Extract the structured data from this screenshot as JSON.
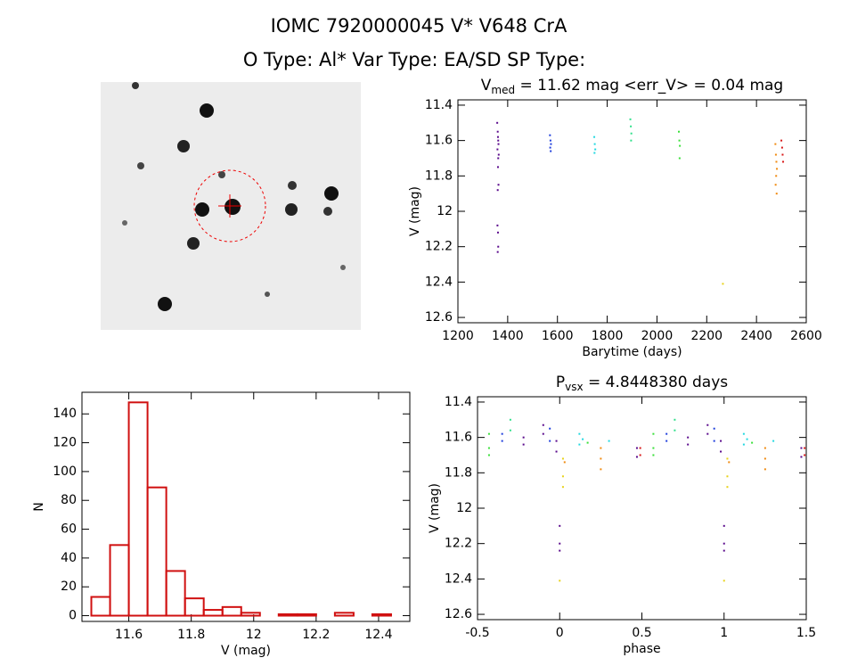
{
  "header": {
    "line1": "IOMC 7920000045    V* V648 CrA",
    "line2": "O Type: Al*  Var Type: EA/SD  SP Type:"
  },
  "chart_data": [
    {
      "type": "scatter",
      "title": "V",
      "title_subscript": "med",
      "title_suffix": " = 11.62 mag <err_V> = 0.04 mag",
      "x_label": "Barytime (days)",
      "y_label": "V (mag)",
      "xlim": [
        1200,
        2600
      ],
      "xticks": [
        1200,
        1400,
        1600,
        1800,
        2000,
        2200,
        2400,
        2600
      ],
      "ylim": [
        12.63,
        11.37
      ],
      "yticks": [
        11.4,
        11.6,
        11.8,
        12.0,
        12.2,
        12.4,
        12.6
      ],
      "series": [
        {
          "color": "#5a0a8c",
          "x": [
            1358,
            1360,
            1361,
            1362,
            1363,
            1359,
            1364,
            1362,
            1361,
            1363,
            1360,
            1359,
            1361,
            1362,
            1360
          ],
          "values": [
            11.5,
            11.55,
            11.58,
            11.6,
            11.62,
            11.65,
            11.68,
            11.7,
            11.75,
            11.85,
            11.88,
            12.08,
            12.12,
            12.2,
            12.23
          ]
        },
        {
          "color": "#1f3fdc",
          "x": [
            1570,
            1572,
            1574,
            1571,
            1573
          ],
          "values": [
            11.57,
            11.6,
            11.62,
            11.64,
            11.66
          ]
        },
        {
          "color": "#22d8e0",
          "x": [
            1748,
            1750,
            1752,
            1749
          ],
          "values": [
            11.58,
            11.62,
            11.65,
            11.67
          ]
        },
        {
          "color": "#2ee08a",
          "x": [
            1893,
            1895,
            1897,
            1896
          ],
          "values": [
            11.48,
            11.52,
            11.56,
            11.6
          ]
        },
        {
          "color": "#3ae03a",
          "x": [
            2088,
            2090,
            2092,
            2091
          ],
          "values": [
            11.55,
            11.6,
            11.63,
            11.7
          ]
        },
        {
          "color": "#e8d21a",
          "x": [
            2265
          ],
          "values": [
            12.41
          ]
        },
        {
          "color": "#f08a10",
          "x": [
            2476,
            2478,
            2480,
            2482,
            2479,
            2477,
            2481
          ],
          "values": [
            11.62,
            11.68,
            11.72,
            11.76,
            11.8,
            11.85,
            11.9
          ]
        },
        {
          "color": "#d81818",
          "x": [
            2500,
            2503,
            2505,
            2507
          ],
          "values": [
            11.6,
            11.64,
            11.68,
            11.72
          ]
        }
      ]
    },
    {
      "type": "histogram",
      "x_label": "V (mag)",
      "y_label": "N",
      "color": "#d01010",
      "bins": [
        11.48,
        11.54,
        11.6,
        11.66,
        11.72,
        11.78,
        11.84,
        11.9,
        11.96,
        12.02,
        12.08,
        12.14,
        12.2,
        12.26,
        12.32,
        12.38,
        12.44
      ],
      "values": [
        13,
        49,
        148,
        89,
        31,
        12,
        4,
        6,
        2,
        0,
        1,
        1,
        0,
        2,
        0,
        1
      ],
      "xlim": [
        11.45,
        12.5
      ],
      "xticks": [
        11.6,
        11.8,
        12.0,
        12.2,
        12.4
      ],
      "ylim": [
        -4,
        155
      ],
      "yticks": [
        0,
        20,
        40,
        60,
        80,
        100,
        120,
        140
      ]
    },
    {
      "type": "scatter",
      "title": "P",
      "title_subscript": "vsx",
      "title_suffix": " = 4.8448380 days",
      "x_label": "phase",
      "y_label": "V (mag)",
      "xlim": [
        -0.5,
        1.5
      ],
      "xticks": [
        -0.5,
        0.0,
        0.5,
        1.0,
        1.5
      ],
      "ylim": [
        12.63,
        11.37
      ],
      "yticks": [
        11.4,
        11.6,
        11.8,
        12.0,
        12.2,
        12.4,
        12.6
      ],
      "series": [
        {
          "color": "#5a0a8c",
          "x": [
            -0.22,
            -0.22,
            -0.1,
            -0.1,
            -0.02,
            -0.02,
            0.0,
            0.0,
            0.0,
            0.47,
            0.47,
            0.78,
            0.78,
            0.9,
            0.9,
            0.98,
            0.98,
            1.0,
            1.0,
            1.0,
            1.47,
            1.47
          ],
          "values": [
            11.6,
            11.64,
            11.53,
            11.58,
            11.62,
            11.68,
            12.1,
            12.2,
            12.24,
            11.66,
            11.71,
            11.6,
            11.64,
            11.53,
            11.58,
            11.62,
            11.68,
            12.1,
            12.2,
            12.24,
            11.66,
            11.71
          ]
        },
        {
          "color": "#1f3fdc",
          "x": [
            -0.35,
            -0.35,
            -0.06,
            -0.06,
            0.65,
            0.65,
            0.94,
            0.94
          ],
          "values": [
            11.58,
            11.62,
            11.55,
            11.62,
            11.58,
            11.62,
            11.55,
            11.62
          ]
        },
        {
          "color": "#22d8e0",
          "x": [
            0.12,
            0.12,
            0.14,
            0.3,
            1.12,
            1.12,
            1.14,
            1.3
          ],
          "values": [
            11.58,
            11.64,
            11.61,
            11.62,
            11.58,
            11.64,
            11.61,
            11.62
          ]
        },
        {
          "color": "#2ee08a",
          "x": [
            -0.3,
            -0.3,
            0.7,
            0.7
          ],
          "values": [
            11.5,
            11.56,
            11.5,
            11.56
          ]
        },
        {
          "color": "#3ae03a",
          "x": [
            -0.43,
            -0.43,
            -0.43,
            0.17,
            0.57,
            0.57,
            0.57,
            1.17
          ],
          "values": [
            11.58,
            11.66,
            11.7,
            11.63,
            11.58,
            11.66,
            11.7,
            11.63
          ]
        },
        {
          "color": "#e8d21a",
          "x": [
            0.02,
            0.02,
            0.02,
            0.0,
            1.02,
            1.02,
            1.02,
            1.0
          ],
          "values": [
            11.72,
            11.82,
            11.88,
            12.41,
            11.72,
            11.82,
            11.88,
            12.41
          ]
        },
        {
          "color": "#f08a10",
          "x": [
            0.25,
            0.25,
            0.25,
            0.03,
            1.25,
            1.25,
            1.25,
            1.03
          ],
          "values": [
            11.66,
            11.72,
            11.78,
            11.74,
            11.66,
            11.72,
            11.78,
            11.74
          ]
        },
        {
          "color": "#d81818",
          "x": [
            0.49,
            0.49,
            1.49,
            1.49
          ],
          "values": [
            11.66,
            11.7,
            11.66,
            11.7
          ]
        }
      ]
    }
  ]
}
